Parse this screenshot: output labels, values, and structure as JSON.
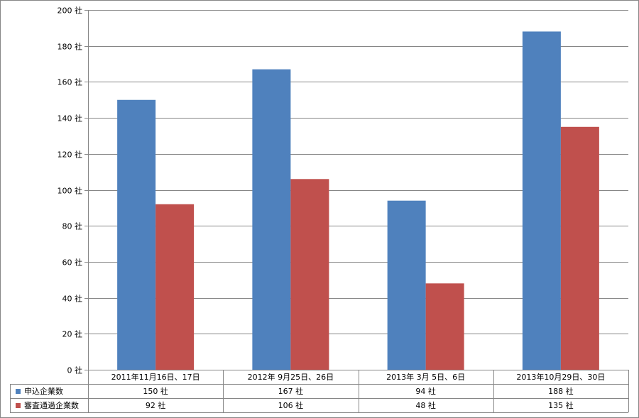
{
  "chart_data": {
    "type": "bar",
    "categories": [
      "2011年11月16日、17日",
      "2012年 9月25日、26日",
      "2013年 3月  5日、6日",
      "2013年10月29日、30日"
    ],
    "series": [
      {
        "name": "申込企業数",
        "values": [
          150,
          167,
          94,
          188
        ],
        "color": "#4F81BD",
        "labels": [
          "150 社",
          "167 社",
          "94 社",
          "188 社"
        ]
      },
      {
        "name": "審査通過企業数",
        "values": [
          92,
          106,
          48,
          135
        ],
        "color": "#C0504D",
        "labels": [
          "92 社",
          "106 社",
          "48 社",
          "135 社"
        ]
      }
    ],
    "ylim": [
      0,
      200
    ],
    "ytick_step": 20,
    "ytick_unit": "社",
    "ytick_labels": [
      "0 社",
      "20 社",
      "40 社",
      "60 社",
      "80 社",
      "100 社",
      "120 社",
      "140 社",
      "160 社",
      "180 社",
      "200 社"
    ],
    "grid": true,
    "legend": "data-table"
  }
}
